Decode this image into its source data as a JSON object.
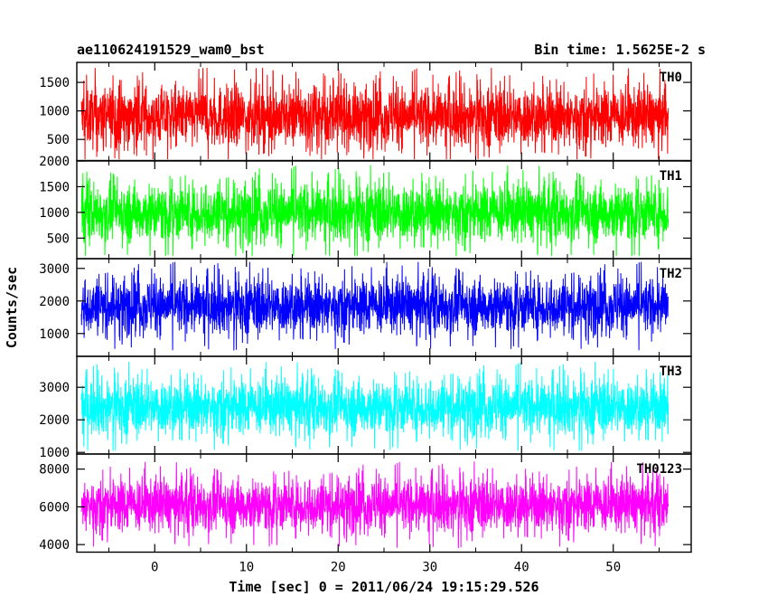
{
  "header": {
    "left_title": "ae110624191529_wam0_bst",
    "right_title": "Bin time: 1.5625E-2 s"
  },
  "chart_data": {
    "type": "line",
    "xlabel": "Time [sec] 0 = 2011/06/24 19:15:29.526",
    "ylabel": "Counts/sec",
    "xlim": [
      -8.5,
      58.5
    ],
    "x_range": [
      -8,
      56
    ],
    "x_ticks": [
      0,
      10,
      20,
      30,
      40,
      50
    ],
    "panels": [
      {
        "name": "TH0",
        "color": "#ff0000",
        "ylim": [
          130,
          1850
        ],
        "y_ticks": [
          500,
          1000,
          1500
        ],
        "y_tick_labels": [
          "500",
          "1000",
          "1500"
        ],
        "center": 900,
        "spread": 260,
        "max": 1850,
        "min": 150
      },
      {
        "name": "TH1",
        "color": "#00ff00",
        "ylim": [
          100,
          2000
        ],
        "y_ticks": [
          500,
          1000,
          1500,
          2000
        ],
        "y_tick_labels": [
          "500",
          "1000",
          "1500",
          "2000"
        ],
        "center": 1000,
        "spread": 280,
        "max": 1950,
        "min": 150
      },
      {
        "name": "TH2",
        "color": "#0000ff",
        "ylim": [
          300,
          3300
        ],
        "y_ticks": [
          1000,
          2000,
          3000
        ],
        "y_tick_labels": [
          "1000",
          "2000",
          "3000"
        ],
        "center": 1850,
        "spread": 420,
        "max": 3200,
        "min": 450
      },
      {
        "name": "TH3",
        "color": "#00ffff",
        "ylim": [
          950,
          3950
        ],
        "y_ticks": [
          1000,
          2000,
          3000
        ],
        "y_tick_labels": [
          "1000",
          "2000",
          "3000"
        ],
        "center": 2400,
        "spread": 420,
        "max": 3900,
        "min": 1050
      },
      {
        "name": "TH0123",
        "color": "#ff00ff",
        "ylim": [
          3600,
          8800
        ],
        "y_ticks": [
          4000,
          6000,
          8000
        ],
        "y_tick_labels": [
          "4000",
          "6000",
          "8000"
        ],
        "center": 6100,
        "spread": 700,
        "max": 8700,
        "min": 3700
      }
    ]
  }
}
